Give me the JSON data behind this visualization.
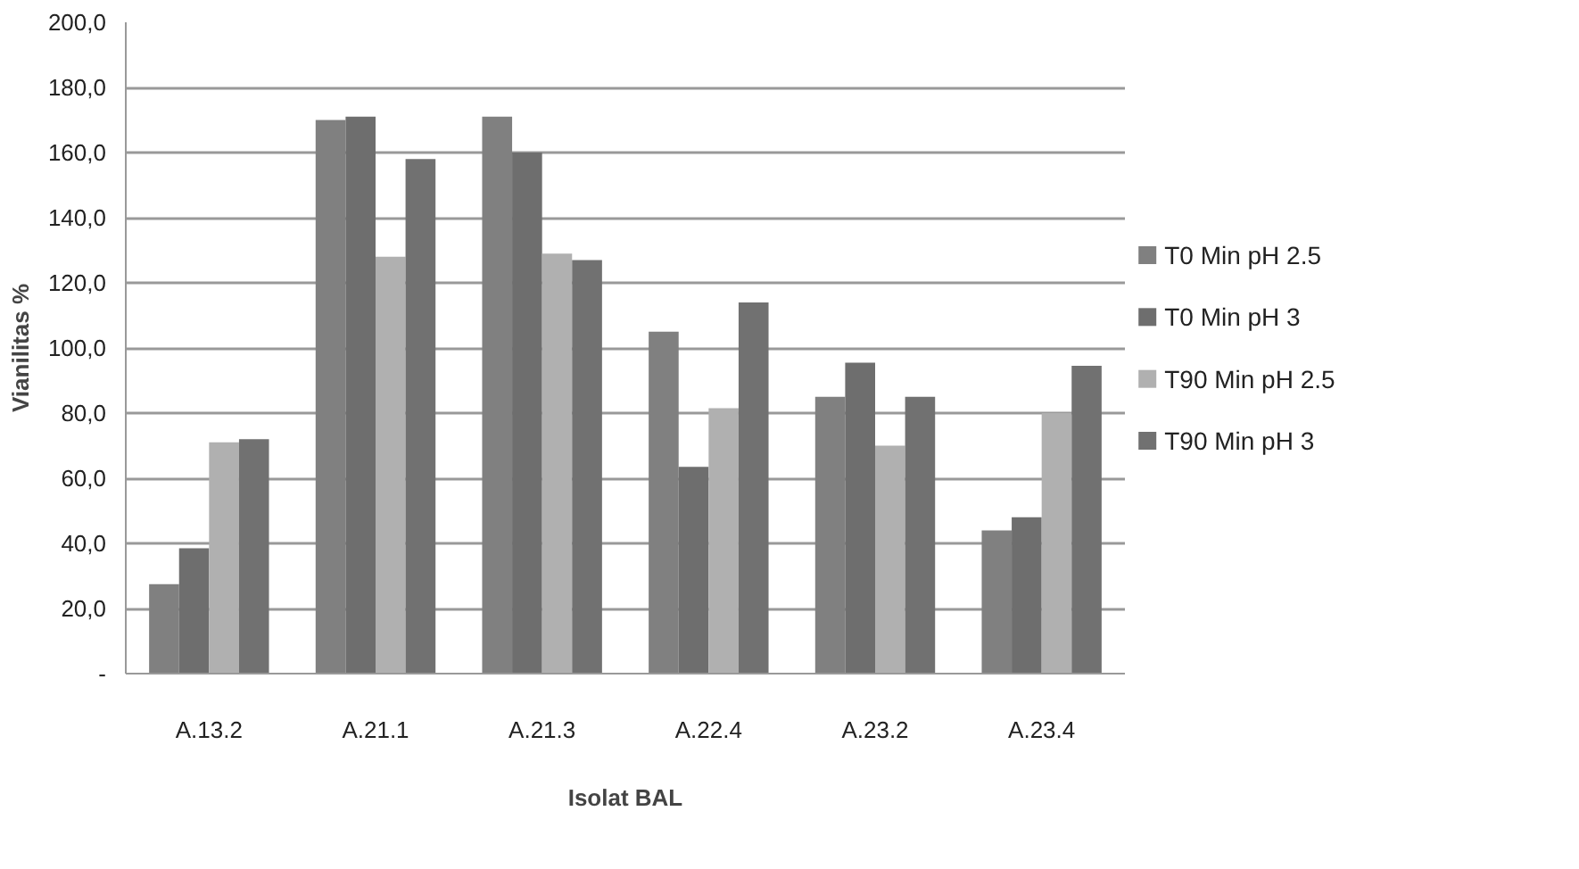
{
  "chart_data": {
    "type": "bar",
    "xlabel": "Isolat BAL",
    "ylabel": "Vianilitas %",
    "categories": [
      "A.13.2",
      "A.21.1",
      "A.21.3",
      "A.22.4",
      "A.23.2",
      "A.23.4"
    ],
    "series": [
      {
        "name": "T0 Min pH 2.5",
        "color": "#808080",
        "values": [
          27.5,
          170,
          171,
          105,
          85,
          44
        ]
      },
      {
        "name": "T0 Min pH 3",
        "color": "#6e6e6e",
        "values": [
          38.5,
          171,
          160,
          63.5,
          95.5,
          48
        ]
      },
      {
        "name": "T90 Min pH 2.5",
        "color": "#b0b0b0",
        "values": [
          71,
          128,
          129,
          81.5,
          70,
          80
        ]
      },
      {
        "name": "T90 Min pH 3",
        "color": "#717171",
        "values": [
          72,
          158,
          127,
          114,
          85,
          94.5
        ]
      }
    ],
    "ylim": [
      0,
      200
    ],
    "yticks": [
      {
        "value": 0,
        "label": "-"
      },
      {
        "value": 20,
        "label": "20,0"
      },
      {
        "value": 40,
        "label": "40,0"
      },
      {
        "value": 60,
        "label": "60,0"
      },
      {
        "value": 80,
        "label": "80,0"
      },
      {
        "value": 100,
        "label": "100,0"
      },
      {
        "value": 120,
        "label": "120,0"
      },
      {
        "value": 140,
        "label": "140,0"
      },
      {
        "value": 160,
        "label": "160,0"
      },
      {
        "value": 180,
        "label": "180,0"
      },
      {
        "value": 200,
        "label": "200,0"
      }
    ],
    "grid": "y",
    "legend": "right"
  }
}
